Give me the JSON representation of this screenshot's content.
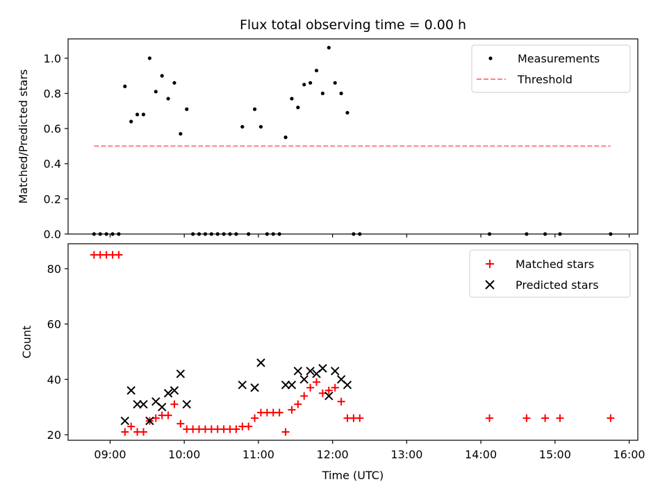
{
  "chart_data": [
    {
      "type": "scatter",
      "title": "Flux total observing time = 0.00 h",
      "xlabel": "",
      "ylabel": "Matched/Predicted stars",
      "xlim": [
        "08:26",
        "16:07"
      ],
      "ylim": [
        0,
        1.11
      ],
      "x_ticks": [
        "09:00",
        "10:00",
        "11:00",
        "12:00",
        "13:00",
        "14:00",
        "15:00",
        "16:00"
      ],
      "y_ticks": [
        "0.0",
        "0.2",
        "0.4",
        "0.6",
        "0.8",
        "1.0"
      ],
      "legend_position": "top-right",
      "series": [
        {
          "name": "Measurements",
          "marker": "dot",
          "color": "#000000",
          "points": [
            [
              "08:47",
              0
            ],
            [
              "08:52",
              0
            ],
            [
              "08:57",
              0
            ],
            [
              "09:02",
              0
            ],
            [
              "09:07",
              0
            ],
            [
              "09:12",
              0.84
            ],
            [
              "09:17",
              0.64
            ],
            [
              "09:22",
              0.68
            ],
            [
              "09:27",
              0.68
            ],
            [
              "09:32",
              1.0
            ],
            [
              "09:37",
              0.81
            ],
            [
              "09:42",
              0.9
            ],
            [
              "09:47",
              0.77
            ],
            [
              "09:52",
              0.86
            ],
            [
              "09:57",
              0.57
            ],
            [
              "10:02",
              0.71
            ],
            [
              "10:07",
              0
            ],
            [
              "10:12",
              0
            ],
            [
              "10:17",
              0
            ],
            [
              "10:22",
              0
            ],
            [
              "10:27",
              0
            ],
            [
              "10:32",
              0
            ],
            [
              "10:37",
              0
            ],
            [
              "10:42",
              0
            ],
            [
              "10:47",
              0.61
            ],
            [
              "10:52",
              0
            ],
            [
              "10:57",
              0.71
            ],
            [
              "11:02",
              0.61
            ],
            [
              "11:07",
              0
            ],
            [
              "11:12",
              0
            ],
            [
              "11:17",
              0
            ],
            [
              "11:22",
              0.55
            ],
            [
              "11:27",
              0.77
            ],
            [
              "11:32",
              0.72
            ],
            [
              "11:37",
              0.85
            ],
            [
              "11:42",
              0.86
            ],
            [
              "11:47",
              0.93
            ],
            [
              "11:52",
              0.8
            ],
            [
              "11:57",
              1.06
            ],
            [
              "12:02",
              0.86
            ],
            [
              "12:07",
              0.8
            ],
            [
              "12:12",
              0.69
            ],
            [
              "12:17",
              0
            ],
            [
              "12:22",
              0
            ],
            [
              "14:07",
              0
            ],
            [
              "14:37",
              0
            ],
            [
              "14:52",
              0
            ],
            [
              "15:04",
              0
            ],
            [
              "15:45",
              0
            ]
          ]
        },
        {
          "name": "Threshold",
          "type": "line",
          "style": "dashed",
          "color": "#ff7f7f",
          "points": [
            [
              "08:47",
              0.5
            ],
            [
              "15:45",
              0.5
            ]
          ]
        }
      ]
    },
    {
      "type": "scatter",
      "title": "",
      "xlabel": "Time (UTC)",
      "ylabel": "Count",
      "xlim": [
        "08:26",
        "16:07"
      ],
      "ylim": [
        18,
        89
      ],
      "x_ticks": [
        "09:00",
        "10:00",
        "11:00",
        "12:00",
        "13:00",
        "14:00",
        "15:00",
        "16:00"
      ],
      "y_ticks": [
        "20",
        "40",
        "60",
        "80"
      ],
      "legend_position": "top-right",
      "series": [
        {
          "name": "Matched stars",
          "marker": "plus",
          "color": "#ff0000",
          "points": [
            [
              "08:47",
              85
            ],
            [
              "08:52",
              85
            ],
            [
              "08:57",
              85
            ],
            [
              "09:02",
              85
            ],
            [
              "09:07",
              85
            ],
            [
              "09:12",
              21
            ],
            [
              "09:17",
              23
            ],
            [
              "09:22",
              21
            ],
            [
              "09:27",
              21
            ],
            [
              "09:32",
              25
            ],
            [
              "09:37",
              26
            ],
            [
              "09:42",
              27
            ],
            [
              "09:47",
              27
            ],
            [
              "09:52",
              31
            ],
            [
              "09:57",
              24
            ],
            [
              "10:02",
              22
            ],
            [
              "10:07",
              22
            ],
            [
              "10:12",
              22
            ],
            [
              "10:17",
              22
            ],
            [
              "10:22",
              22
            ],
            [
              "10:27",
              22
            ],
            [
              "10:32",
              22
            ],
            [
              "10:37",
              22
            ],
            [
              "10:42",
              22
            ],
            [
              "10:47",
              23
            ],
            [
              "10:52",
              23
            ],
            [
              "10:57",
              26
            ],
            [
              "11:02",
              28
            ],
            [
              "11:07",
              28
            ],
            [
              "11:12",
              28
            ],
            [
              "11:17",
              28
            ],
            [
              "11:22",
              21
            ],
            [
              "11:27",
              29
            ],
            [
              "11:32",
              31
            ],
            [
              "11:37",
              34
            ],
            [
              "11:42",
              37
            ],
            [
              "11:47",
              39
            ],
            [
              "11:52",
              35
            ],
            [
              "11:57",
              36
            ],
            [
              "12:02",
              37
            ],
            [
              "12:07",
              32
            ],
            [
              "12:12",
              26
            ],
            [
              "12:17",
              26
            ],
            [
              "12:22",
              26
            ],
            [
              "14:07",
              26
            ],
            [
              "14:37",
              26
            ],
            [
              "14:52",
              26
            ],
            [
              "15:04",
              26
            ],
            [
              "15:45",
              26
            ]
          ]
        },
        {
          "name": "Predicted stars",
          "marker": "x",
          "color": "#000000",
          "points": [
            [
              "09:12",
              25
            ],
            [
              "09:17",
              36
            ],
            [
              "09:22",
              31
            ],
            [
              "09:27",
              31
            ],
            [
              "09:32",
              25
            ],
            [
              "09:37",
              32
            ],
            [
              "09:42",
              30
            ],
            [
              "09:47",
              35
            ],
            [
              "09:52",
              36
            ],
            [
              "09:57",
              42
            ],
            [
              "10:02",
              31
            ],
            [
              "10:47",
              38
            ],
            [
              "10:57",
              37
            ],
            [
              "11:02",
              46
            ],
            [
              "11:22",
              38
            ],
            [
              "11:27",
              38
            ],
            [
              "11:32",
              43
            ],
            [
              "11:37",
              40
            ],
            [
              "11:42",
              43
            ],
            [
              "11:47",
              42
            ],
            [
              "11:52",
              44
            ],
            [
              "11:57",
              34
            ],
            [
              "12:02",
              43
            ],
            [
              "12:07",
              40
            ],
            [
              "12:12",
              38
            ]
          ]
        }
      ]
    }
  ]
}
